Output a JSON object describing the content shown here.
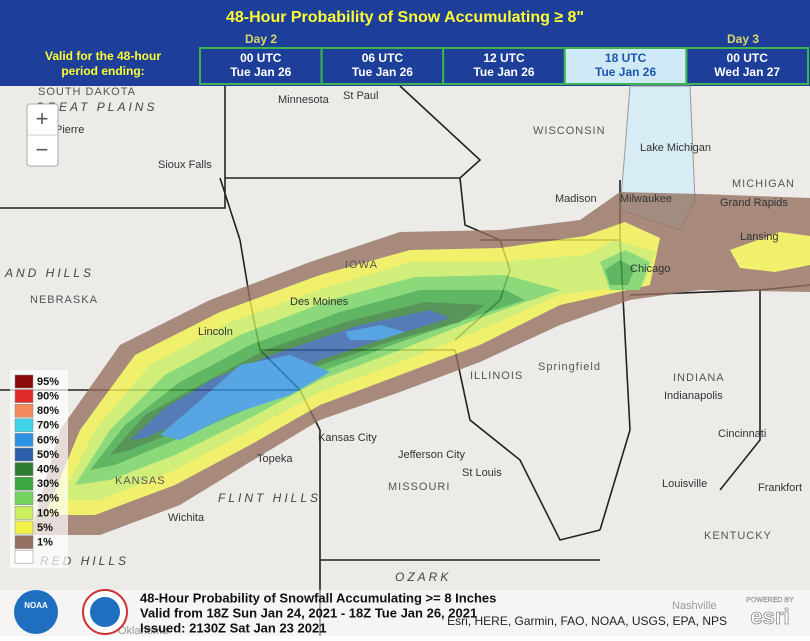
{
  "header": {
    "title": "48-Hour Probability of Snow Accumulating ≥ 8\"",
    "valid_label": [
      "Valid for the 48-hour",
      "period ending:"
    ],
    "day_labels": [
      "Day 2",
      "Day 3"
    ],
    "tabs": [
      {
        "time": "00 UTC",
        "date": "Tue Jan 26",
        "selected": false
      },
      {
        "time": "06 UTC",
        "date": "Tue Jan 26",
        "selected": false
      },
      {
        "time": "12 UTC",
        "date": "Tue Jan 26",
        "selected": false
      },
      {
        "time": "18 UTC",
        "date": "Tue Jan 26",
        "selected": true
      },
      {
        "time": "00 UTC",
        "date": "Wed Jan 27",
        "selected": false
      }
    ]
  },
  "map": {
    "zoom_in": "+",
    "zoom_out": "−",
    "labels": [
      "SOUTH DAKOTA",
      "GREAT PLAINS",
      "Pierre",
      "Sioux Falls",
      "Minnesota",
      "St Paul",
      "WISCONSIN",
      "Lake Michigan",
      "Madison",
      "Milwaukee",
      "Grand Rapids",
      "MICHIGAN",
      "Lansing",
      "IOWA",
      "Des Moines",
      "AND HILLS",
      "NEBRASKA",
      "Lincoln",
      "Chicago",
      "ILLINOIS",
      "Springfield",
      "INDIANA",
      "Indianapolis",
      "Kansas City",
      "Topeka",
      "KANSAS",
      "Wichita",
      "FLINT HILLS",
      "Jefferson City",
      "MISSOURI",
      "St Louis",
      "Cincinnati",
      "Louisville",
      "Frankfort",
      "KENTUCKY",
      "Nashville",
      "Oklahoma",
      "RED HILLS",
      "OZARK"
    ],
    "legend": [
      {
        "label": "95%",
        "color": "#8b0a0a"
      },
      {
        "label": "90%",
        "color": "#e02a2a"
      },
      {
        "label": "80%",
        "color": "#f28a5c"
      },
      {
        "label": "70%",
        "color": "#3fd3ea"
      },
      {
        "label": "60%",
        "color": "#2e92e2"
      },
      {
        "label": "50%",
        "color": "#2b5ea8"
      },
      {
        "label": "40%",
        "color": "#2e7d32"
      },
      {
        "label": "30%",
        "color": "#3aa83e"
      },
      {
        "label": "20%",
        "color": "#72d45e"
      },
      {
        "label": "10%",
        "color": "#cbef5c"
      },
      {
        "label": "5%",
        "color": "#f2f24a"
      },
      {
        "label": "1%",
        "color": "#94705e"
      }
    ]
  },
  "footer": {
    "lines": [
      "48-Hour Probability of Snowfall Accumulating >= 8 Inches",
      "Valid from 18Z Sun Jan 24, 2021 - 18Z Tue Jan 26, 2021",
      "Issued: 2130Z Sat Jan 23 2021"
    ],
    "noaa": "NOAA",
    "attribution": "Esri, HERE, Garmin, FAO, NOAA, USGS, EPA, NPS",
    "powered_by": "POWERED BY",
    "esri": "esri"
  }
}
